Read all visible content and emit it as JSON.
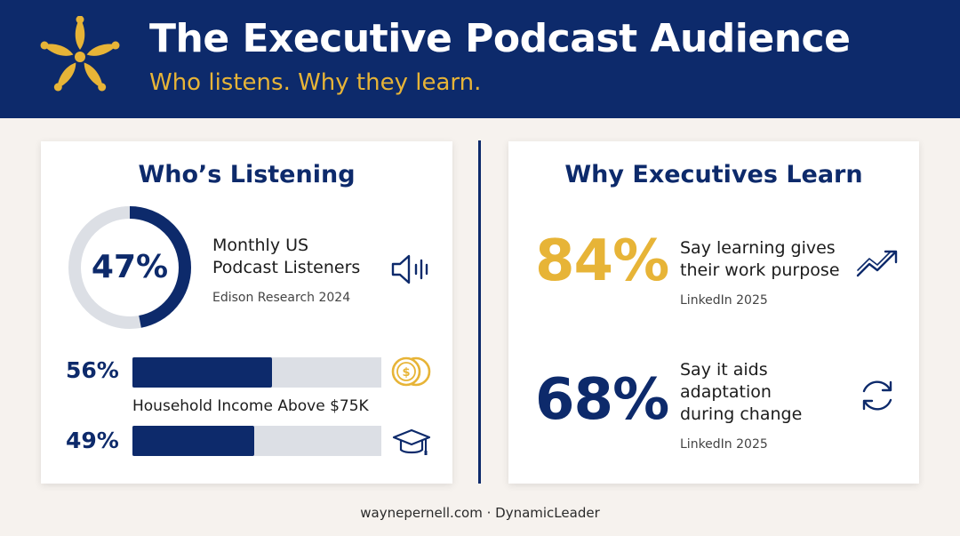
{
  "header": {
    "title": "The Executive Podcast Audience",
    "subtitle": "Who listens. Why they learn.",
    "logo_icon": "sunburst-people-logo"
  },
  "colors": {
    "navy": "#0d2a6b",
    "gold": "#e7b437",
    "track": "#dcdfe5",
    "background": "#f6f2ee"
  },
  "left_card": {
    "title": "Who’s Listening",
    "ring": {
      "value_label": "47%",
      "fraction": 0.47
    },
    "ring_metric": {
      "title_line1": "Monthly US",
      "title_line2": "Podcast Listeners",
      "source": "Edison Research 2024",
      "icon": "speaker-sound-icon"
    },
    "bars": [
      {
        "value_label": "56%",
        "fraction": 0.56,
        "icon": "coins-icon"
      },
      {
        "value_label": "49%",
        "fraction": 0.49,
        "icon": "graduation-cap-icon"
      }
    ],
    "bar_caption": "Household Income Above $75K"
  },
  "right_card": {
    "title": "Why Executives Learn",
    "stats": [
      {
        "value_label": "84%",
        "line1": "Say learning gives",
        "line2": "their work purpose",
        "source": "LinkedIn 2025",
        "icon": "trending-up-icon",
        "color": "#e7b437"
      },
      {
        "value_label": "68%",
        "line1": "Say it aids",
        "line2": "adaptation",
        "line3": "during change",
        "source": "LinkedIn 2025",
        "icon": "refresh-cycle-icon",
        "color": "#0d2a6b"
      }
    ]
  },
  "footer": {
    "text": "waynepernell.com · DynamicLeader"
  }
}
